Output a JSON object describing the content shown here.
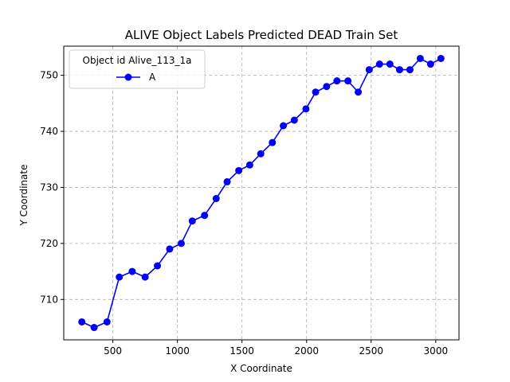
{
  "chart_data": {
    "type": "line",
    "title": "ALIVE Object Labels Predicted DEAD Train Set",
    "xlabel": "X Coordinate",
    "ylabel": "Y Coordinate",
    "xlim": [
      120,
      3180
    ],
    "ylim": [
      702.8,
      755.2
    ],
    "xticks": [
      500,
      1000,
      1500,
      2000,
      2500,
      3000
    ],
    "yticks": [
      710,
      720,
      730,
      740,
      750
    ],
    "grid": true,
    "legend": {
      "title": "Object id Alive_113_1a",
      "placement": "top-left"
    },
    "series": [
      {
        "name": "A",
        "color": "#0000ff",
        "marker": "circle",
        "x": [
          260,
          355,
          455,
          550,
          650,
          750,
          845,
          940,
          1030,
          1115,
          1210,
          1300,
          1385,
          1475,
          1560,
          1645,
          1735,
          1820,
          1905,
          1995,
          2070,
          2155,
          2235,
          2320,
          2400,
          2485,
          2565,
          2645,
          2720,
          2800,
          2880,
          2960,
          3040
        ],
        "y": [
          706,
          705,
          706,
          714,
          715,
          714,
          716,
          719,
          720,
          724,
          725,
          728,
          731,
          733,
          734,
          736,
          738,
          741,
          742,
          744,
          747,
          748,
          749,
          749,
          747,
          751,
          752,
          752,
          751,
          751,
          753,
          752,
          753
        ]
      }
    ]
  }
}
